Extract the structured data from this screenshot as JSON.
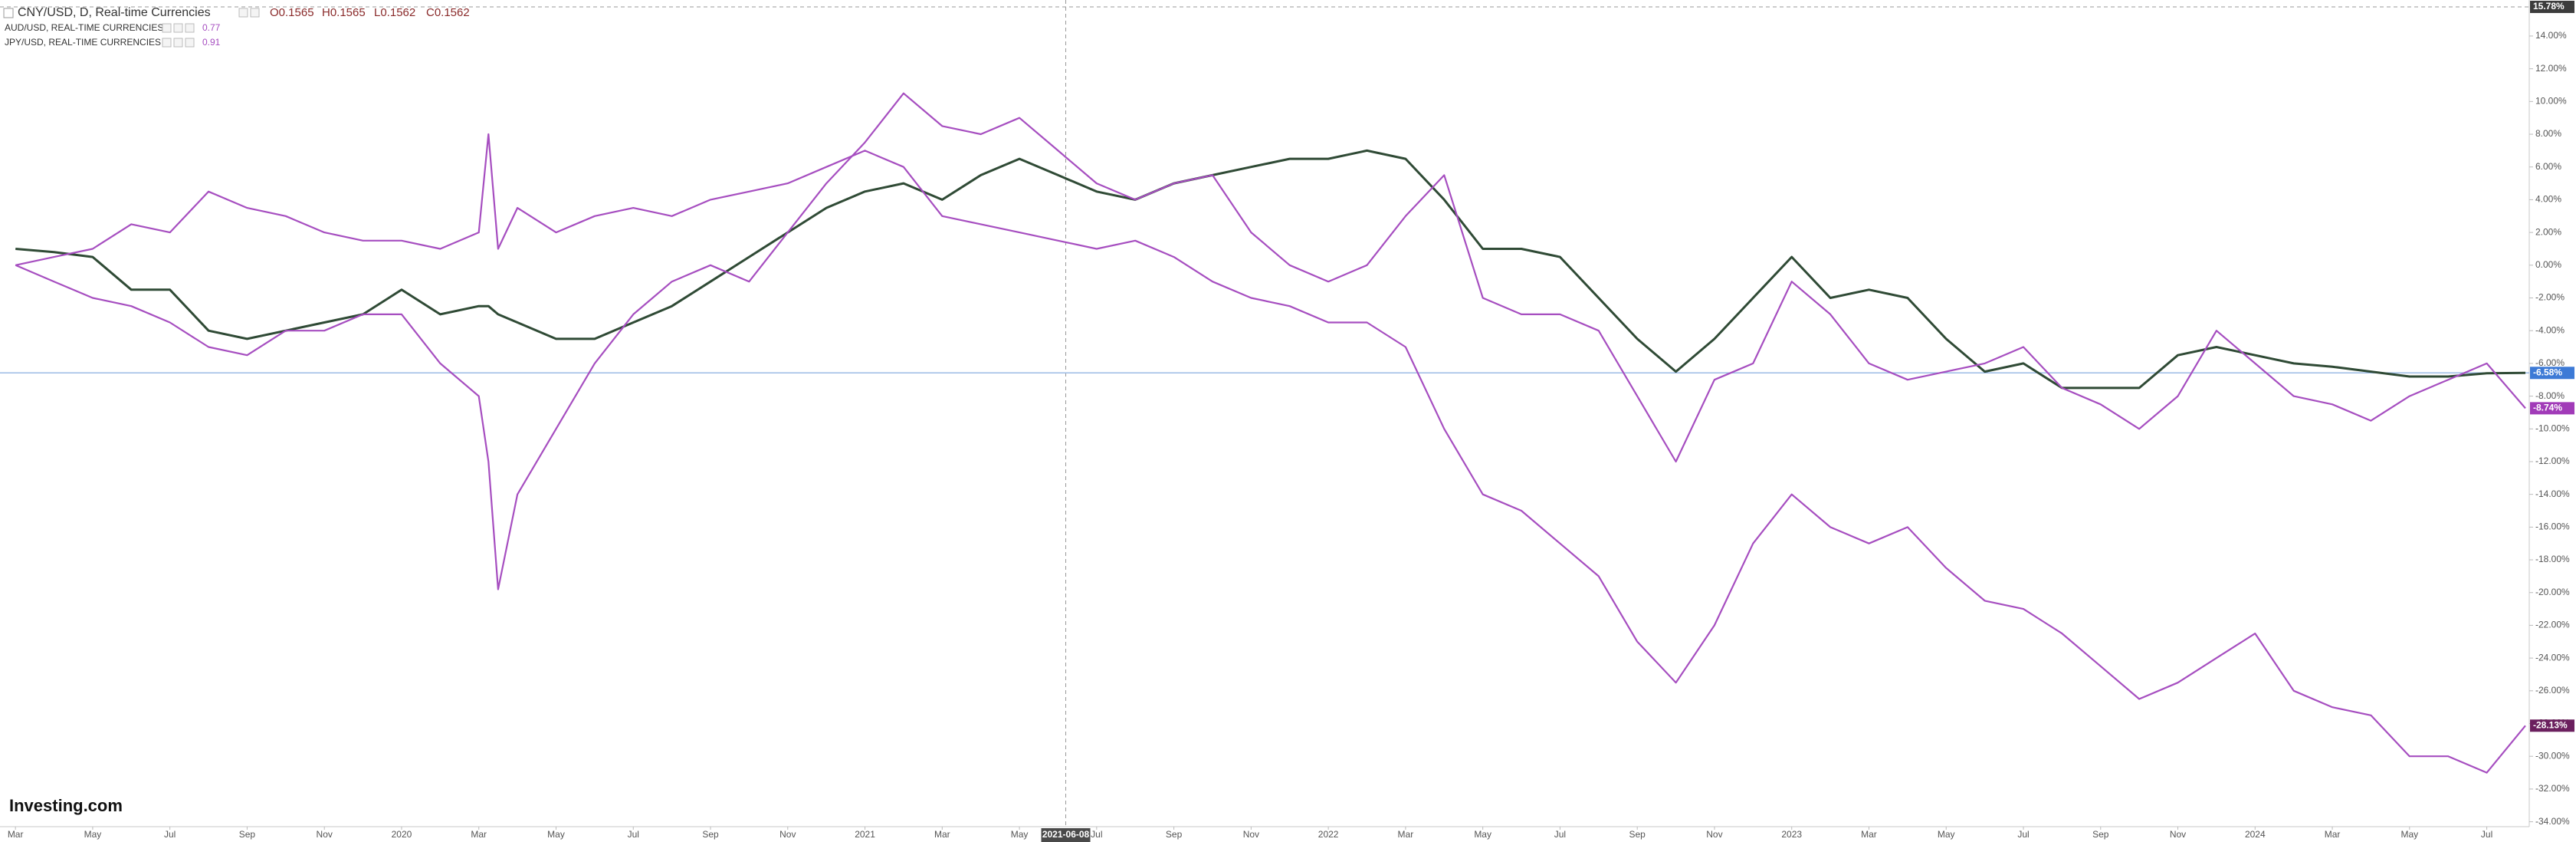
{
  "chart_data": {
    "type": "line",
    "x": [
      0,
      1,
      2,
      3,
      4,
      5,
      6,
      7,
      8,
      9,
      10,
      11,
      12,
      12.25,
      12.5,
      13,
      14,
      15,
      16,
      17,
      18,
      19,
      20,
      21,
      22,
      23,
      24,
      25,
      26,
      27,
      28,
      29,
      30,
      31,
      32,
      33,
      34,
      35,
      36,
      37,
      38,
      39,
      40,
      41,
      42,
      43,
      44,
      45,
      46,
      47,
      48,
      49,
      50,
      51,
      52,
      53,
      54,
      55,
      56,
      57,
      58,
      59,
      60,
      61,
      62,
      63,
      64,
      65
    ],
    "xlim": [
      -0.4,
      65.1
    ],
    "xticks": [
      {
        "value": 0,
        "label": "Mar"
      },
      {
        "value": 2,
        "label": "May"
      },
      {
        "value": 4,
        "label": "Jul"
      },
      {
        "value": 6,
        "label": "Sep"
      },
      {
        "value": 8,
        "label": "Nov"
      },
      {
        "value": 10,
        "label": "2020"
      },
      {
        "value": 12,
        "label": "Mar"
      },
      {
        "value": 14,
        "label": "May"
      },
      {
        "value": 16,
        "label": "Jul"
      },
      {
        "value": 18,
        "label": "Sep"
      },
      {
        "value": 20,
        "label": "Nov"
      },
      {
        "value": 22,
        "label": "2021"
      },
      {
        "value": 24,
        "label": "Mar"
      },
      {
        "value": 26,
        "label": "May"
      },
      {
        "value": 28,
        "label": "Jul"
      },
      {
        "value": 30,
        "label": "Sep"
      },
      {
        "value": 32,
        "label": "Nov"
      },
      {
        "value": 34,
        "label": "2022"
      },
      {
        "value": 36,
        "label": "Mar"
      },
      {
        "value": 38,
        "label": "May"
      },
      {
        "value": 40,
        "label": "Jul"
      },
      {
        "value": 42,
        "label": "Sep"
      },
      {
        "value": 44,
        "label": "Nov"
      },
      {
        "value": 46,
        "label": "2023"
      },
      {
        "value": 48,
        "label": "Mar"
      },
      {
        "value": 50,
        "label": "May"
      },
      {
        "value": 52,
        "label": "Jul"
      },
      {
        "value": 54,
        "label": "Sep"
      },
      {
        "value": 56,
        "label": "Nov"
      },
      {
        "value": 58,
        "label": "2024"
      },
      {
        "value": 60,
        "label": "Mar"
      },
      {
        "value": 62,
        "label": "May"
      },
      {
        "value": 64,
        "label": "Jul"
      }
    ],
    "ylim": [
      -34.3,
      16.2
    ],
    "yticks": [
      {
        "value": 14,
        "label": "14.00%"
      },
      {
        "value": 12,
        "label": "12.00%"
      },
      {
        "value": 10,
        "label": "10.00%"
      },
      {
        "value": 8,
        "label": "8.00%"
      },
      {
        "value": 6,
        "label": "6.00%"
      },
      {
        "value": 4,
        "label": "4.00%"
      },
      {
        "value": 2,
        "label": "2.00%"
      },
      {
        "value": 0,
        "label": "0.00%"
      },
      {
        "value": -2,
        "label": "-2.00%"
      },
      {
        "value": -4,
        "label": "-4.00%"
      },
      {
        "value": -6,
        "label": "-6.00%"
      },
      {
        "value": -8,
        "label": "-8.00%"
      },
      {
        "value": -10,
        "label": "-10.00%"
      },
      {
        "value": -12,
        "label": "-12.00%"
      },
      {
        "value": -14,
        "label": "-14.00%"
      },
      {
        "value": -16,
        "label": "-16.00%"
      },
      {
        "value": -18,
        "label": "-18.00%"
      },
      {
        "value": -20,
        "label": "-20.00%"
      },
      {
        "value": -22,
        "label": "-22.00%"
      },
      {
        "value": -24,
        "label": "-24.00%"
      },
      {
        "value": -26,
        "label": "-26.00%"
      },
      {
        "value": -28,
        "label": "-28.00%"
      },
      {
        "value": -30,
        "label": "-30.00%"
      },
      {
        "value": -32,
        "label": "-32.00%"
      },
      {
        "value": -34,
        "label": "-34.00%"
      }
    ],
    "grid": false,
    "series": [
      {
        "name": "CNY/USD, D, Real-time Currencies",
        "color": "#2f4a35",
        "badge_color": "#3d7ad6",
        "price_line": true,
        "ohlc": [
          "O0.1565",
          "H0.1565",
          "L0.1562",
          "C0.1562"
        ],
        "last_label": "-6.58%",
        "values": [
          1.0,
          0.8,
          0.5,
          -1.5,
          -1.5,
          -4.0,
          -4.5,
          -4.0,
          -3.5,
          -3.0,
          -1.5,
          -3.0,
          -2.5,
          -2.5,
          -3.0,
          -3.5,
          -4.5,
          -4.5,
          -3.5,
          -2.5,
          -1.0,
          0.5,
          2.0,
          3.5,
          4.5,
          5.0,
          4.0,
          5.5,
          6.5,
          5.5,
          4.5,
          4.0,
          5.0,
          5.5,
          6.0,
          6.5,
          6.5,
          7.0,
          6.5,
          4.0,
          1.0,
          1.0,
          0.5,
          -2.0,
          -4.5,
          -6.5,
          -4.5,
          -2.0,
          0.5,
          -2.0,
          -1.5,
          -2.0,
          -4.5,
          -6.5,
          -6.0,
          -7.5,
          -7.5,
          -7.5,
          -5.5,
          -5.0,
          -5.5,
          -6.0,
          -6.2,
          -6.5,
          -6.8,
          -6.8,
          -6.6,
          -6.58
        ]
      },
      {
        "name": "AUD/USD, REAL-TIME CURRENCIES",
        "color": "#a64ec0",
        "badge_color": "#a13bb8",
        "legend_value": "0.77",
        "last_label": "-8.74%",
        "values": [
          0.0,
          -1.0,
          -2.0,
          -2.5,
          -3.5,
          -5.0,
          -5.5,
          -4.0,
          -4.0,
          -3.0,
          -3.0,
          -6.0,
          -8.0,
          -12.0,
          -19.8,
          -14,
          -10,
          -6,
          -3,
          -1,
          0,
          -1,
          2,
          5,
          7.5,
          10.5,
          8.5,
          8.0,
          9,
          7,
          5,
          4,
          5,
          5.5,
          2,
          0,
          -1,
          0,
          3,
          5.5,
          -2,
          -3,
          -3,
          -4,
          -8,
          -12,
          -7,
          -6,
          -1,
          -3,
          -6,
          -7,
          -6.5,
          -6,
          -5,
          -7.5,
          -8.5,
          -10,
          -8,
          -4,
          -6,
          -8,
          -8.5,
          -9.5,
          -8,
          -7,
          -6,
          -8.74
        ]
      },
      {
        "name": "JPY/USD, REAL-TIME CURRENCIES",
        "color": "#a64ec0",
        "badge_color": "#6b1f5e",
        "legend_value": "0.91",
        "last_label": "-28.13%",
        "values": [
          0.0,
          0.5,
          1.0,
          2.5,
          2.0,
          4.5,
          3.5,
          3.0,
          2.0,
          1.5,
          1.5,
          1.0,
          2.0,
          8.0,
          1.0,
          3.5,
          2.0,
          3.0,
          3.5,
          3.0,
          4.0,
          4.5,
          5.0,
          6.0,
          7.0,
          6.0,
          3.0,
          2.5,
          2.0,
          1.5,
          1.0,
          1.5,
          0.5,
          -1.0,
          -2.0,
          -2.5,
          -3.5,
          -3.5,
          -5.0,
          -10.0,
          -14,
          -15,
          -17,
          -19,
          -23,
          -25.5,
          -22,
          -17,
          -14,
          -16,
          -17,
          -16,
          -18.5,
          -20.5,
          -21,
          -22.5,
          -24.5,
          -26.5,
          -25.5,
          -24,
          -22.5,
          -26,
          -27,
          -27.5,
          -30,
          -30,
          -31,
          -28.13
        ]
      }
    ],
    "crosshair": {
      "x": 27.2,
      "x_label": "2021-06-08",
      "y": 15.78,
      "y_label": "15.78%"
    },
    "watermark": "Investing.com"
  }
}
